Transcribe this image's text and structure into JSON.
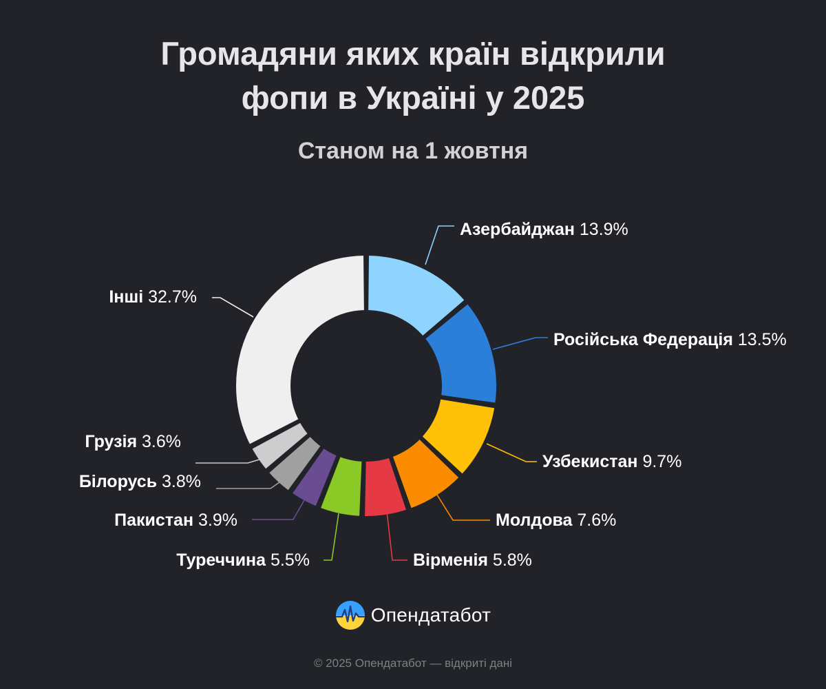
{
  "title_line1": "Громадяни яких країн відкрили",
  "title_line2": "фопи в Україні у 2025",
  "subtitle": "Станом на 1 жовтня",
  "brand": {
    "name": "Опендатабот",
    "logo_icon": "opendatabot-logo-icon"
  },
  "footer": "© 2025 Опендатабот — відкриті дані",
  "chart_data": {
    "type": "pie",
    "variant": "donut",
    "title": "Громадяни яких країн відкрили фопи в Україні у 2025",
    "subtitle": "Станом на 1 жовтня",
    "unit": "%",
    "categories": [
      "Азербайджан",
      "Російська Федерація",
      "Узбекистан",
      "Молдова",
      "Вірменія",
      "Туреччина",
      "Пакистан",
      "Білорусь",
      "Грузія",
      "Інші"
    ],
    "values": [
      13.9,
      13.5,
      9.7,
      7.6,
      5.8,
      5.5,
      3.9,
      3.8,
      3.6,
      32.7
    ],
    "labels": [
      "13.9%",
      "13.5%",
      "9.7%",
      "7.6%",
      "5.8%",
      "5.5%",
      "3.9%",
      "3.8%",
      "3.6%",
      "32.7%"
    ],
    "colors": [
      "#8fd3ff",
      "#2b7fd9",
      "#ffc107",
      "#fb8c00",
      "#e53945",
      "#8bc926",
      "#6a4c93",
      "#a0a0a0",
      "#cdcdcd",
      "#efefef"
    ],
    "legend": "none"
  }
}
